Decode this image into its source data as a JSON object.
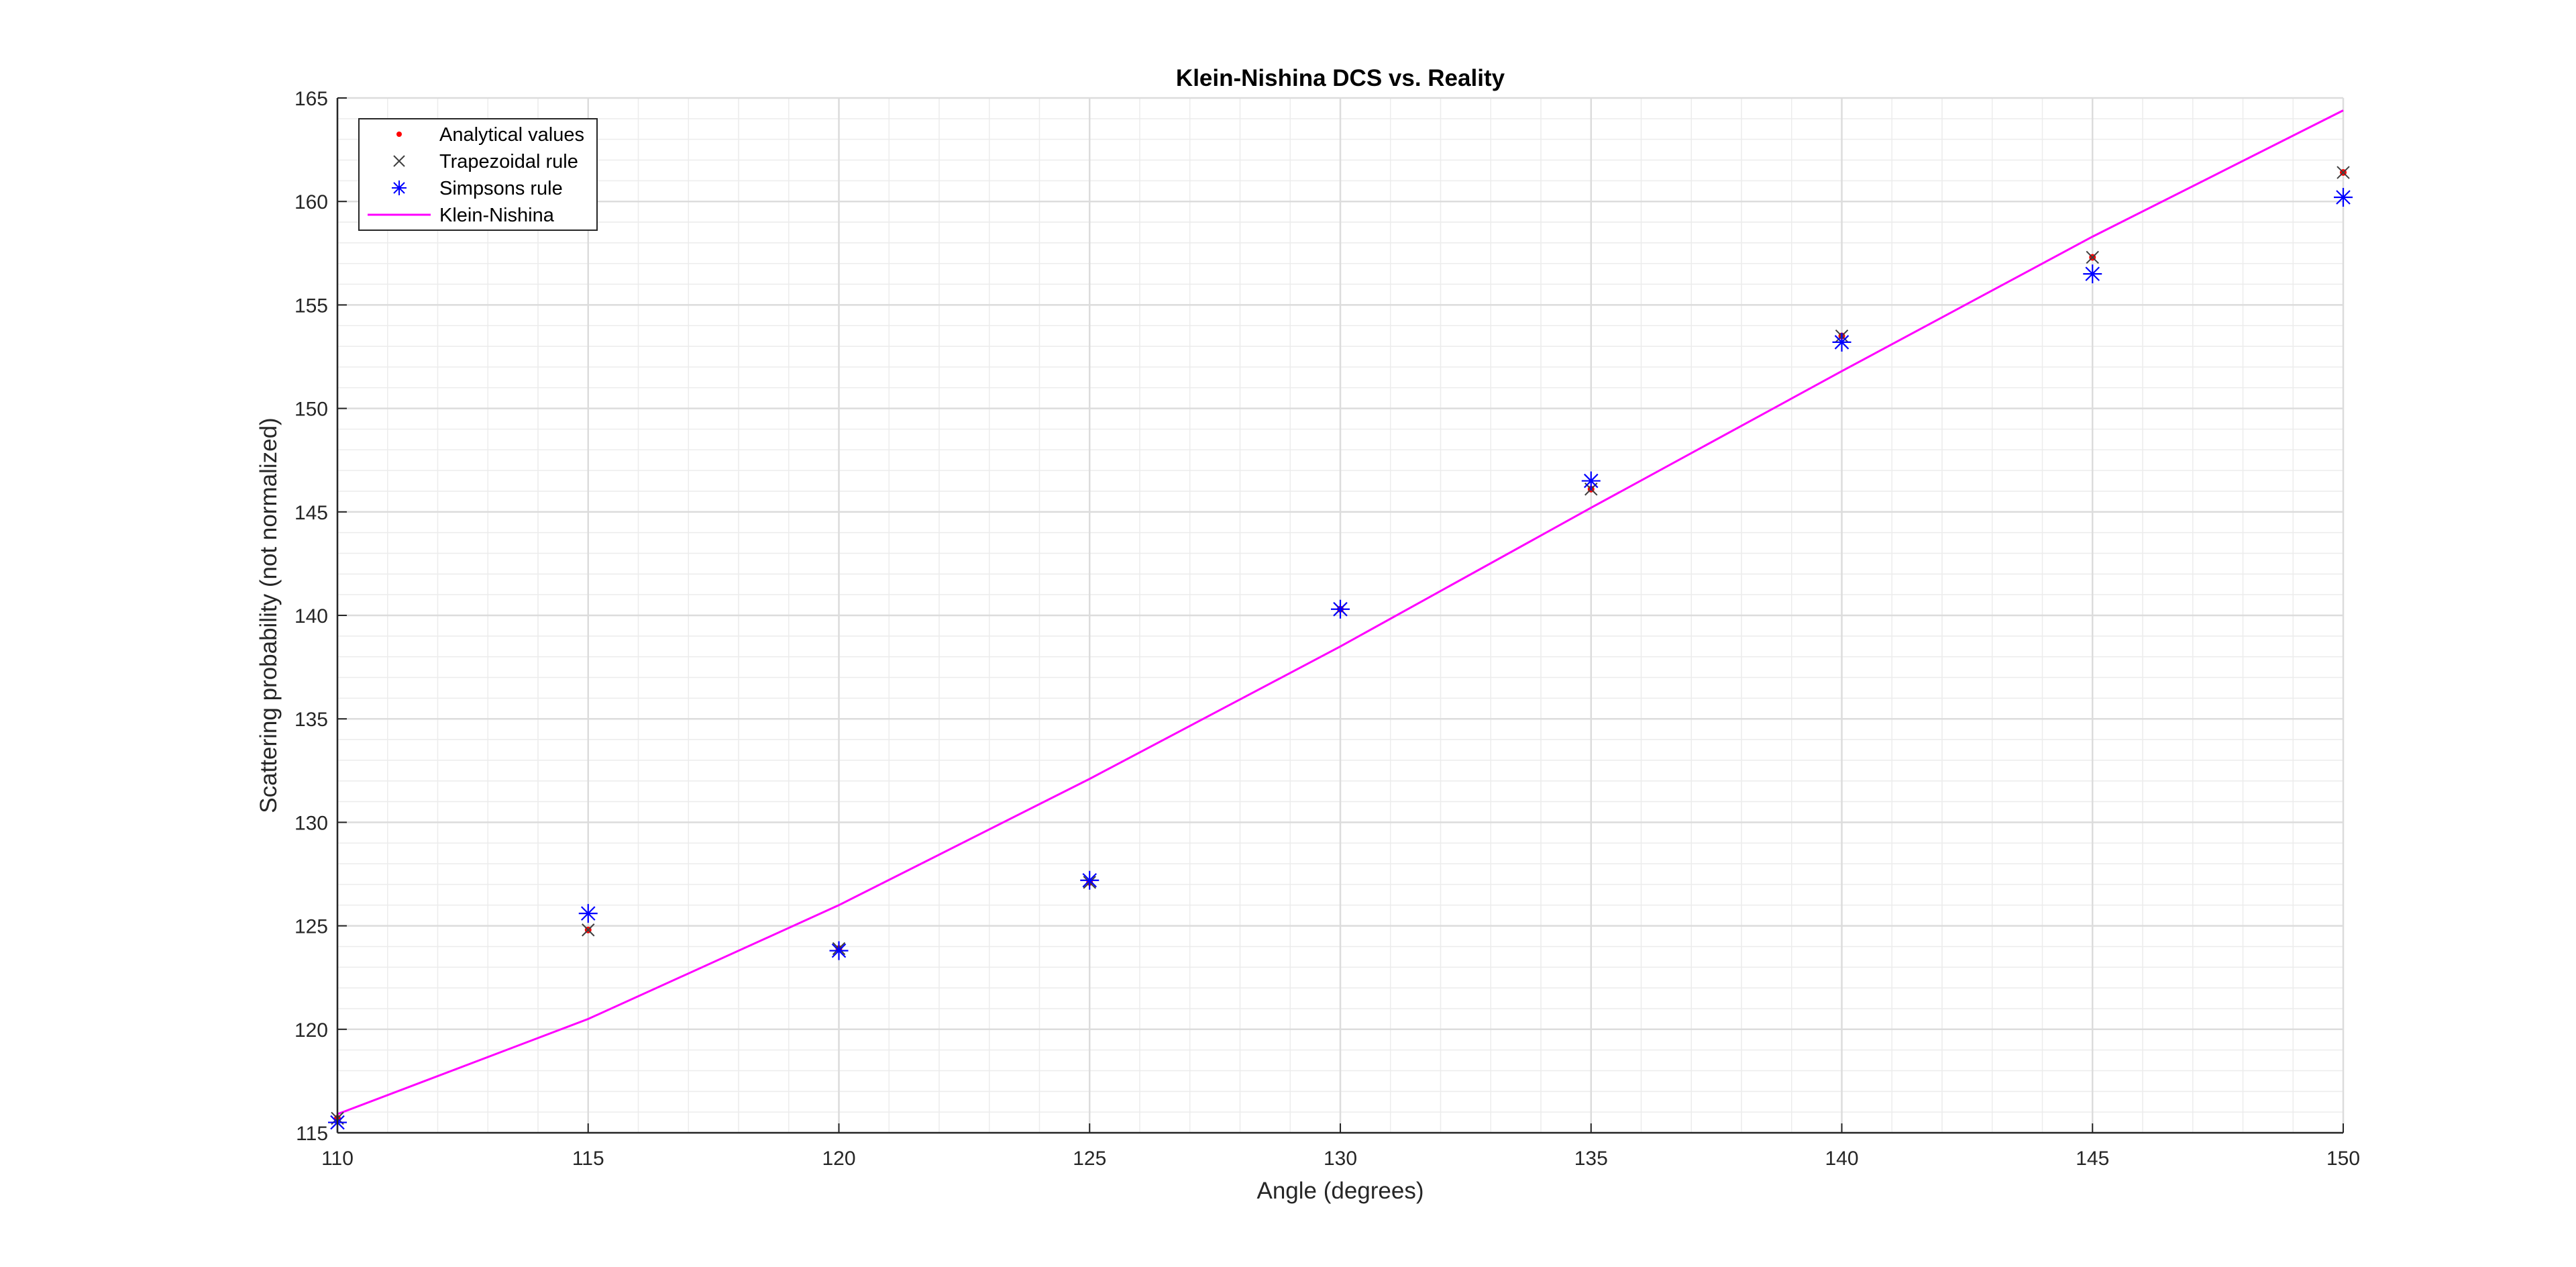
{
  "chart_data": {
    "type": "scatter",
    "title": "Klein-Nishina DCS vs. Reality",
    "xlabel": "Angle (degrees)",
    "ylabel": "Scattering probability (not normalized)",
    "xlim": [
      110,
      150
    ],
    "ylim": [
      115,
      165
    ],
    "xticks": [
      "110",
      "115",
      "120",
      "125",
      "130",
      "135",
      "140",
      "145",
      "150"
    ],
    "yticks": [
      "115",
      "120",
      "125",
      "130",
      "135",
      "140",
      "145",
      "150",
      "155",
      "160",
      "165"
    ],
    "grid": true,
    "minor_grid": true,
    "legend_position": "top-left",
    "series": [
      {
        "name": "Analytical values",
        "marker": "dot",
        "color": "#ff0000",
        "x": [
          110,
          115,
          120,
          125,
          130,
          135,
          140,
          145,
          150
        ],
        "y": [
          115.7,
          124.8,
          123.9,
          127.1,
          140.3,
          146.1,
          153.5,
          157.3,
          161.4
        ]
      },
      {
        "name": "Trapezoidal rule",
        "marker": "x",
        "color": "#404040",
        "x": [
          110,
          115,
          120,
          125,
          130,
          135,
          140,
          145,
          150
        ],
        "y": [
          115.7,
          124.8,
          123.9,
          127.1,
          140.3,
          146.1,
          153.5,
          157.3,
          161.4
        ]
      },
      {
        "name": "Simpsons rule",
        "marker": "asterisk",
        "color": "#0000ff",
        "x": [
          110,
          115,
          120,
          125,
          130,
          135,
          140,
          145,
          150
        ],
        "y": [
          115.5,
          125.6,
          123.8,
          127.2,
          140.3,
          146.5,
          153.2,
          156.5,
          160.2
        ]
      },
      {
        "name": "Klein-Nishina",
        "marker": "line",
        "color": "#ff00ff",
        "x": [
          110,
          115,
          120,
          125,
          130,
          135,
          140,
          145,
          150
        ],
        "y": [
          115.9,
          120.5,
          126.0,
          132.1,
          138.5,
          145.2,
          151.8,
          158.3,
          164.4
        ]
      }
    ]
  }
}
